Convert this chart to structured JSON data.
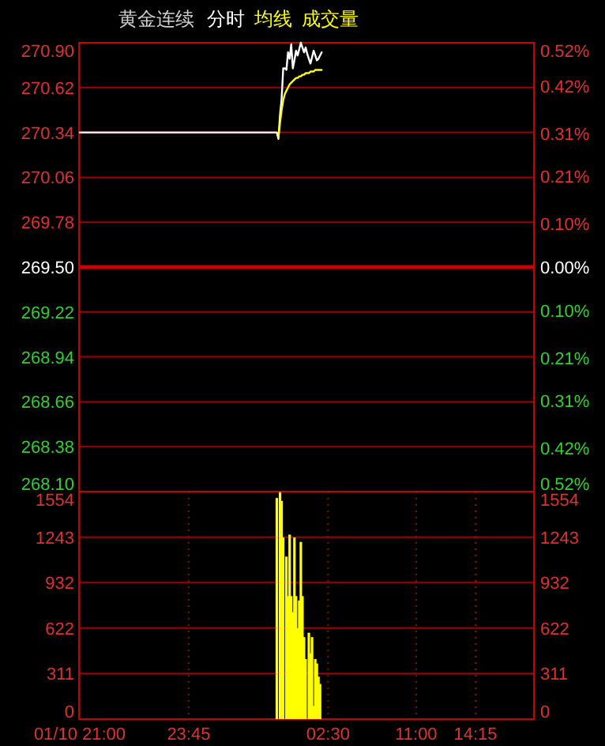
{
  "chart_data": [
    {
      "type": "line",
      "title": "黄金连续",
      "legend": "top",
      "grid": "y",
      "tick_labels": "y",
      "categories": [
        null,
        null,
        null,
        null,
        null,
        null,
        null,
        null,
        null,
        null,
        null,
        null,
        null,
        null,
        null,
        null,
        null,
        null,
        null,
        null,
        null,
        null,
        null,
        null,
        null,
        null,
        null,
        null,
        null,
        null,
        null,
        null,
        null,
        null,
        null,
        null,
        null,
        null,
        null,
        null,
        null,
        null,
        null,
        null,
        null,
        null,
        null,
        null,
        null,
        null,
        null,
        null,
        null,
        null,
        null,
        null,
        null,
        null,
        null,
        null,
        null,
        null,
        null,
        null,
        null,
        null,
        null,
        null,
        null,
        null,
        null,
        null,
        null,
        null,
        null,
        null,
        null,
        null,
        null,
        null,
        null,
        null,
        null,
        null,
        null,
        null,
        null,
        null,
        null,
        null,
        null,
        null,
        null,
        null,
        null,
        null,
        null,
        null,
        null,
        null,
        null,
        null,
        null,
        null,
        null,
        null,
        null,
        null,
        null,
        null,
        null,
        null,
        null,
        null,
        null,
        null,
        null,
        null,
        null,
        null,
        null,
        null,
        null,
        null,
        null,
        null,
        null,
        null,
        null,
        null,
        null,
        null,
        null,
        null,
        null,
        null,
        null,
        null,
        null,
        null,
        null,
        null,
        null,
        null,
        null,
        null,
        null,
        null,
        null,
        null,
        null,
        null,
        null,
        null,
        null,
        null,
        null,
        null,
        null,
        null,
        null,
        null,
        null,
        null,
        null,
        null,
        null,
        null,
        null,
        null,
        null,
        null,
        null,
        null,
        null,
        null,
        null,
        null,
        null,
        null,
        null,
        null,
        null,
        null,
        null,
        null,
        null,
        null,
        null,
        null,
        null,
        null,
        null,
        null,
        null,
        null,
        null,
        null,
        null,
        null,
        null,
        null,
        null,
        null,
        null,
        null,
        null,
        null,
        null,
        null,
        null,
        null,
        null,
        null,
        null,
        null,
        null,
        null,
        null,
        null,
        null,
        null,
        null,
        null,
        null,
        null,
        null,
        null,
        null,
        null,
        null,
        null,
        null,
        null,
        null,
        null,
        null,
        null,
        null,
        null,
        null,
        null,
        null,
        null,
        null,
        null,
        null,
        null,
        null,
        null,
        null,
        null,
        null,
        null,
        null,
        null,
        null,
        null,
        null,
        null,
        null,
        null,
        null,
        null,
        null,
        null,
        null,
        null,
        null,
        null,
        null,
        null,
        null,
        null,
        null,
        null,
        null,
        null,
        null,
        null,
        null,
        null,
        null,
        null
      ],
      "ylim": [
        268.1,
        270.9
      ],
      "yticks": [
        {
          "value": 268.1,
          "label": "268.10"
        },
        268.38,
        268.66,
        268.94,
        269.22,
        {
          "value": 269.5,
          "label": "269.50"
        },
        269.78,
        270.06,
        270.34,
        270.62,
        {
          "value": 270.9,
          "label": "270.90"
        }
      ],
      "y2lim": [
        -0.52,
        0.52
      ],
      "y2ticks": [
        {
          "value": -0.52,
          "label": "0.52%"
        },
        {
          "value": -0.42,
          "label": "0.42%"
        },
        {
          "value": -0.31,
          "label": "0.31%"
        },
        {
          "value": -0.21,
          "label": "0.21%"
        },
        {
          "value": -0.1,
          "label": "0.10%"
        },
        {
          "value": 0,
          "label": "0.00%"
        },
        {
          "value": 0.1,
          "label": "0.10%"
        },
        {
          "value": 0.21,
          "label": "0.21%"
        },
        {
          "value": 0.31,
          "label": "0.31%"
        },
        {
          "value": 0.42,
          "label": "0.42%"
        },
        {
          "value": 0.52,
          "label": "0.52%"
        }
      ],
      "ref_lines": [
        {
          "axis": "y",
          "value": 269.5,
          "color": "#cc0000"
        }
      ],
      "series": [
        {
          "name": "分时",
          "color": "#ffffff",
          "values": [
            270.34,
            270.34,
            270.34,
            270.34,
            270.34,
            270.34,
            270.34,
            270.34,
            270.34,
            270.34,
            270.34,
            270.34,
            270.34,
            270.34,
            270.34,
            270.34,
            270.34,
            270.34,
            270.34,
            270.34,
            270.34,
            270.34,
            270.34,
            270.34,
            270.34,
            270.34,
            270.34,
            270.34,
            270.34,
            270.34,
            270.34,
            270.34,
            270.34,
            270.34,
            270.34,
            270.34,
            270.34,
            270.34,
            270.34,
            270.34,
            270.34,
            270.34,
            270.34,
            270.34,
            270.34,
            270.34,
            270.34,
            270.34,
            270.34,
            270.34,
            270.34,
            270.34,
            270.34,
            270.34,
            270.34,
            270.34,
            270.34,
            270.34,
            270.34,
            270.34,
            270.34,
            270.34,
            270.34,
            270.34,
            270.34,
            270.34,
            270.34,
            270.34,
            270.34,
            270.34,
            270.34,
            270.34,
            270.34,
            270.34,
            270.34,
            270.34,
            270.34,
            270.34,
            270.34,
            270.34,
            270.34,
            270.34,
            270.34,
            270.34,
            270.34,
            270.34,
            270.34,
            270.34,
            270.34,
            270.34,
            270.34,
            270.34,
            270.34,
            270.34,
            270.34,
            270.34,
            270.34,
            270.34,
            270.34,
            270.34,
            270.34,
            270.34,
            270.34,
            270.34,
            270.34,
            270.34,
            270.34,
            270.34,
            270.34,
            270.34,
            270.34,
            270.34,
            270.34,
            270.34,
            270.34,
            270.34,
            270.34,
            270.34,
            270.34,
            270.34,
            270.34,
            270.34,
            270.34,
            270.34,
            270.3,
            270.45,
            270.55,
            270.74,
            270.74,
            270.73,
            270.84,
            270.8,
            270.89,
            270.74,
            270.79,
            270.85,
            270.82,
            270.86,
            270.9,
            270.87,
            270.84,
            270.87,
            270.83,
            270.8,
            270.77,
            270.81,
            270.85,
            270.82,
            270.79,
            270.8,
            270.82,
            270.84,
            null,
            null,
            null,
            null,
            null,
            null,
            null,
            null,
            null,
            null,
            null,
            null,
            null,
            null,
            null,
            null,
            null,
            null,
            null,
            null,
            null,
            null,
            null,
            null,
            null,
            null,
            null,
            null,
            null,
            null,
            null,
            null,
            null,
            null,
            null,
            null,
            null,
            null,
            null,
            null,
            null,
            null,
            null,
            null,
            null,
            null,
            null,
            null,
            null,
            null,
            null,
            null,
            null,
            null,
            null,
            null,
            null,
            null,
            null,
            null,
            null,
            null,
            null,
            null,
            null,
            null,
            null,
            null,
            null,
            null,
            null,
            null,
            null,
            null,
            null,
            null,
            null,
            null,
            null,
            null,
            null,
            null,
            null,
            null,
            null,
            null,
            null,
            null,
            null,
            null,
            null,
            null,
            null,
            null,
            null,
            null,
            null,
            null,
            null,
            null,
            null,
            null,
            null,
            null,
            null,
            null,
            null,
            null,
            null,
            null,
            null,
            null,
            null,
            null,
            null,
            null,
            null,
            null,
            null,
            null,
            null,
            null,
            null,
            null,
            null,
            null,
            null,
            null,
            null,
            null,
            null,
            null
          ]
        },
        {
          "name": "均线",
          "color": "#ffff00",
          "values": [
            null,
            null,
            null,
            null,
            null,
            null,
            null,
            null,
            null,
            null,
            null,
            null,
            null,
            null,
            null,
            null,
            null,
            null,
            null,
            null,
            null,
            null,
            null,
            null,
            null,
            null,
            null,
            null,
            null,
            null,
            null,
            null,
            null,
            null,
            null,
            null,
            null,
            null,
            null,
            null,
            null,
            null,
            null,
            null,
            null,
            null,
            null,
            null,
            null,
            null,
            null,
            null,
            null,
            null,
            null,
            null,
            null,
            null,
            null,
            null,
            null,
            null,
            null,
            null,
            null,
            null,
            null,
            null,
            null,
            null,
            null,
            null,
            null,
            null,
            null,
            null,
            null,
            null,
            null,
            null,
            null,
            null,
            null,
            null,
            null,
            null,
            null,
            null,
            null,
            null,
            null,
            null,
            null,
            null,
            null,
            null,
            null,
            null,
            null,
            null,
            null,
            null,
            null,
            null,
            null,
            null,
            null,
            null,
            null,
            null,
            null,
            null,
            null,
            null,
            null,
            null,
            null,
            null,
            null,
            null,
            null,
            null,
            null,
            null,
            270.31,
            270.4,
            270.48,
            270.54,
            270.58,
            270.6,
            270.62,
            270.64,
            270.65,
            270.66,
            270.67,
            270.68,
            270.68,
            270.69,
            270.69,
            270.7,
            270.7,
            270.71,
            270.71,
            270.71,
            270.72,
            270.72,
            270.72,
            270.73,
            270.73,
            270.73,
            270.73,
            270.73,
            null,
            null,
            null,
            null,
            null,
            null,
            null,
            null,
            null,
            null,
            null,
            null,
            null,
            null,
            null,
            null,
            null,
            null,
            null,
            null,
            null,
            null,
            null,
            null,
            null,
            null,
            null,
            null,
            null,
            null,
            null,
            null,
            null,
            null,
            null,
            null,
            null,
            null,
            null,
            null,
            null,
            null,
            null,
            null,
            null,
            null,
            null,
            null,
            null,
            null,
            null,
            null,
            null,
            null,
            null,
            null,
            null,
            null,
            null,
            null,
            null,
            null,
            null,
            null,
            null,
            null,
            null,
            null,
            null,
            null,
            null,
            null,
            null,
            null,
            null,
            null,
            null,
            null,
            null,
            null,
            null,
            null,
            null,
            null,
            null,
            null,
            null,
            null,
            null,
            null,
            null,
            null,
            null,
            null,
            null,
            null,
            null,
            null,
            null,
            null,
            null,
            null,
            null,
            null,
            null,
            null,
            null,
            null,
            null,
            null,
            null,
            null,
            null,
            null,
            null,
            null,
            null,
            null,
            null,
            null,
            null,
            null,
            null,
            null,
            null,
            null,
            null,
            null,
            null,
            null,
            null,
            null
          ]
        }
      ]
    },
    {
      "type": "bar",
      "legend": "top",
      "grid": true,
      "categories": [
        "01/10 21:00",
        null,
        null,
        null,
        null,
        null,
        null,
        null,
        null,
        null,
        null,
        null,
        null,
        null,
        null,
        null,
        null,
        null,
        null,
        null,
        null,
        null,
        null,
        null,
        null,
        null,
        null,
        null,
        null,
        null,
        null,
        null,
        null,
        null,
        null,
        null,
        null,
        null,
        null,
        null,
        null,
        null,
        null,
        null,
        null,
        null,
        null,
        null,
        null,
        null,
        null,
        null,
        null,
        null,
        null,
        null,
        null,
        null,
        null,
        null,
        null,
        null,
        null,
        null,
        null,
        null,
        null,
        null,
        "23:45",
        null,
        null,
        null,
        null,
        null,
        null,
        null,
        null,
        null,
        null,
        null,
        null,
        null,
        null,
        null,
        null,
        null,
        null,
        null,
        null,
        null,
        null,
        null,
        null,
        null,
        null,
        null,
        null,
        null,
        null,
        null,
        null,
        null,
        null,
        null,
        null,
        null,
        null,
        null,
        null,
        null,
        null,
        null,
        null,
        null,
        null,
        null,
        null,
        null,
        null,
        null,
        null,
        null,
        null,
        null,
        null,
        null,
        null,
        null,
        null,
        null,
        null,
        null,
        null,
        null,
        null,
        null,
        null,
        null,
        null,
        null,
        null,
        null,
        null,
        null,
        null,
        null,
        null,
        null,
        null,
        null,
        null,
        null,
        null,
        null,
        null,
        "02:30",
        null,
        null,
        null,
        null,
        null,
        null,
        null,
        null,
        null,
        null,
        null,
        null,
        null,
        null,
        null,
        null,
        null,
        null,
        null,
        null,
        null,
        null,
        null,
        null,
        null,
        null,
        null,
        null,
        null,
        null,
        null,
        null,
        null,
        null,
        null,
        null,
        null,
        null,
        null,
        null,
        null,
        null,
        null,
        null,
        null,
        null,
        null,
        null,
        null,
        null,
        null,
        null,
        null,
        null,
        "11:00",
        null,
        null,
        null,
        null,
        null,
        null,
        null,
        null,
        null,
        null,
        null,
        null,
        null,
        null,
        null,
        null,
        null,
        null,
        null,
        null,
        null,
        null,
        null,
        null,
        null,
        null,
        null,
        null,
        null,
        null,
        null,
        null,
        null,
        null,
        null,
        null,
        "14:15",
        null,
        null,
        null,
        null,
        null,
        null,
        null,
        null,
        null,
        null,
        null,
        null,
        null,
        null,
        null,
        null,
        null,
        null,
        null,
        null,
        null,
        null,
        null,
        null,
        null,
        null,
        null,
        null,
        null,
        null,
        null,
        null,
        null,
        null,
        null,
        null
      ],
      "ylim": [
        0,
        1554
      ],
      "yticks": [
        0,
        311,
        622,
        932,
        1243,
        1554
      ],
      "y2lim": [
        0,
        1554
      ],
      "y2ticks": [
        0,
        311,
        622,
        932,
        1243,
        1554
      ],
      "series": [
        {
          "name": "成交量",
          "color": "#ffff00",
          "values": [
            null,
            null,
            null,
            null,
            null,
            null,
            null,
            null,
            null,
            null,
            null,
            null,
            null,
            null,
            null,
            null,
            null,
            null,
            null,
            null,
            null,
            null,
            null,
            null,
            null,
            null,
            null,
            null,
            null,
            null,
            null,
            null,
            null,
            null,
            null,
            null,
            null,
            null,
            null,
            null,
            null,
            null,
            null,
            null,
            null,
            null,
            null,
            null,
            null,
            null,
            null,
            null,
            null,
            null,
            null,
            null,
            null,
            null,
            null,
            null,
            null,
            null,
            null,
            null,
            null,
            null,
            null,
            null,
            null,
            null,
            null,
            null,
            null,
            null,
            null,
            null,
            null,
            null,
            null,
            null,
            null,
            null,
            null,
            null,
            null,
            null,
            null,
            null,
            null,
            null,
            null,
            null,
            null,
            null,
            null,
            null,
            null,
            null,
            null,
            null,
            null,
            null,
            null,
            null,
            null,
            null,
            null,
            null,
            null,
            null,
            null,
            null,
            null,
            null,
            null,
            null,
            null,
            null,
            null,
            null,
            null,
            null,
            null,
            1510,
            null,
            1550,
            1490,
            1240,
            null,
            1110,
            840,
            1260,
            840,
            730,
            1240,
            840,
            620,
            810,
            1210,
            840,
            560,
            410,
            null,
            590,
            450,
            560,
            90,
            410,
            380,
            290,
            240,
            null,
            null,
            null,
            null,
            null,
            null,
            null,
            null,
            null,
            null,
            null,
            null,
            null,
            null,
            null,
            null,
            null,
            null,
            null,
            null,
            null,
            null,
            null,
            null,
            null,
            null,
            null,
            null,
            null,
            null,
            null,
            null,
            null,
            null,
            null,
            null,
            null,
            null,
            null,
            null,
            null,
            null,
            null,
            null,
            null,
            null,
            null,
            null,
            null,
            null,
            null,
            null,
            null,
            null,
            null,
            null,
            null,
            null,
            null,
            null,
            null,
            null,
            null,
            null,
            null,
            null,
            null,
            null,
            null,
            null,
            null,
            null,
            null,
            null,
            null,
            null,
            null,
            null,
            null,
            null,
            null,
            null,
            null,
            null,
            null,
            null,
            null,
            null,
            null,
            null,
            null,
            null,
            null,
            null,
            null,
            null,
            null,
            null,
            null,
            null,
            null,
            null,
            null,
            null,
            null,
            null,
            null,
            null,
            null,
            null,
            null,
            null,
            null,
            null,
            null,
            null,
            null,
            null,
            null,
            null,
            null,
            null,
            null,
            null,
            null,
            null,
            null,
            null,
            null,
            null,
            null,
            null,
            null
          ]
        }
      ]
    }
  ]
}
